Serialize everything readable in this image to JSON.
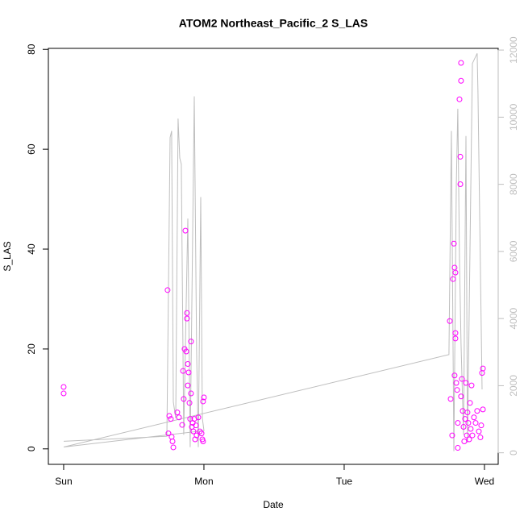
{
  "chart_data": {
    "type": "scatter",
    "title": "ATOM2 Northeast_Pacific_2 S_LAS",
    "x_label": "Date",
    "y_label": "S_LAS",
    "xlim": [
      -0.109,
      3.098
    ],
    "xticks": [
      {
        "value": 0,
        "label": "Sun"
      },
      {
        "value": 1,
        "label": "Mon"
      },
      {
        "value": 2,
        "label": "Tue"
      },
      {
        "value": 3,
        "label": "Wed"
      }
    ],
    "ylim": [
      -3.1,
      80.2
    ],
    "yticks": [
      0,
      20,
      40,
      60,
      80
    ],
    "y2lim": [
      -344,
      12050
    ],
    "y2ticks": [
      0,
      2000,
      4000,
      6000,
      8000,
      10000,
      12000
    ],
    "series": [
      {
        "type": "scatter",
        "color": "#ff00ff",
        "x": [
          0,
          0,
          0.741,
          0.747,
          0.753,
          0.764,
          0.776,
          0.782,
          0.77,
          0.81,
          0.822,
          0.845,
          0.856,
          0.862,
          0.868,
          0.874,
          0.879,
          0.879,
          0.885,
          0.885,
          0.891,
          0.897,
          0.902,
          0.908,
          0.908,
          0.914,
          0.92,
          0.925,
          0.931,
          0.937,
          0.943,
          0.948,
          0.96,
          0.971,
          0.983,
          0.989,
          0.994,
          1.0,
          0.994,
          0.851,
          2.753,
          2.759,
          2.77,
          2.776,
          2.782,
          2.787,
          2.793,
          2.793,
          2.793,
          2.787,
          2.799,
          2.805,
          2.81,
          2.81,
          2.822,
          2.828,
          2.828,
          2.833,
          2.833,
          2.833,
          2.839,
          2.845,
          2.851,
          2.856,
          2.862,
          2.868,
          2.874,
          2.879,
          2.885,
          2.891,
          2.897,
          2.902,
          2.908,
          2.914,
          2.925,
          2.937,
          2.948,
          2.96,
          2.971,
          2.977,
          2.983,
          2.989,
          2.989
        ],
        "values": [
          12.4,
          11.1,
          31.8,
          3.1,
          6.6,
          6.0,
          1.5,
          0.3,
          2.4,
          7.3,
          6.3,
          4.8,
          10.0,
          20.0,
          43.7,
          19.5,
          27.2,
          26.1,
          17.0,
          12.7,
          15.3,
          9.2,
          6.0,
          11.1,
          21.5,
          4.4,
          5.2,
          3.5,
          6.0,
          1.9,
          4.7,
          2.7,
          6.3,
          3.5,
          3.1,
          1.9,
          9.5,
          10.3,
          1.5,
          15.6,
          25.6,
          10.0,
          2.7,
          34.0,
          41.1,
          36.3,
          35.3,
          23.2,
          22.1,
          14.7,
          13.2,
          11.8,
          5.2,
          0.2,
          70.0,
          53.0,
          58.5,
          73.7,
          77.3,
          10.5,
          14.0,
          7.6,
          4.4,
          1.5,
          6.0,
          13.2,
          2.7,
          7.3,
          5.2,
          1.9,
          9.2,
          4.0,
          12.7,
          2.7,
          6.3,
          5.2,
          7.6,
          3.5,
          2.3,
          4.7,
          15.2,
          16.1,
          7.9
        ]
      },
      {
        "type": "line",
        "axis": "y2",
        "color": "#bebebe",
        "x": [
          0,
          0.736,
          0.759,
          0.77,
          0.782,
          0.799,
          0.816,
          0.828,
          0.839,
          0.856,
          0.885,
          0.902,
          0.931,
          0.948,
          0.96,
          0.977,
          0.989,
          1.0,
          0,
          2.747,
          2.764,
          2.782,
          2.799,
          2.81,
          2.822,
          2.833,
          2.851,
          2.868,
          2.879,
          2.914,
          2.948,
          2.954,
          2.983
        ],
        "values": [
          344,
          492,
          9390,
          9590,
          1520,
          1030,
          9960,
          8780,
          8600,
          540,
          6980,
          170,
          10620,
          3000,
          170,
          7620,
          1030,
          660,
          172,
          2926,
          9590,
          50,
          7920,
          10250,
          5700,
          3250,
          540,
          9440,
          300,
          11600,
          11900,
          10740,
          1890
        ]
      }
    ]
  }
}
